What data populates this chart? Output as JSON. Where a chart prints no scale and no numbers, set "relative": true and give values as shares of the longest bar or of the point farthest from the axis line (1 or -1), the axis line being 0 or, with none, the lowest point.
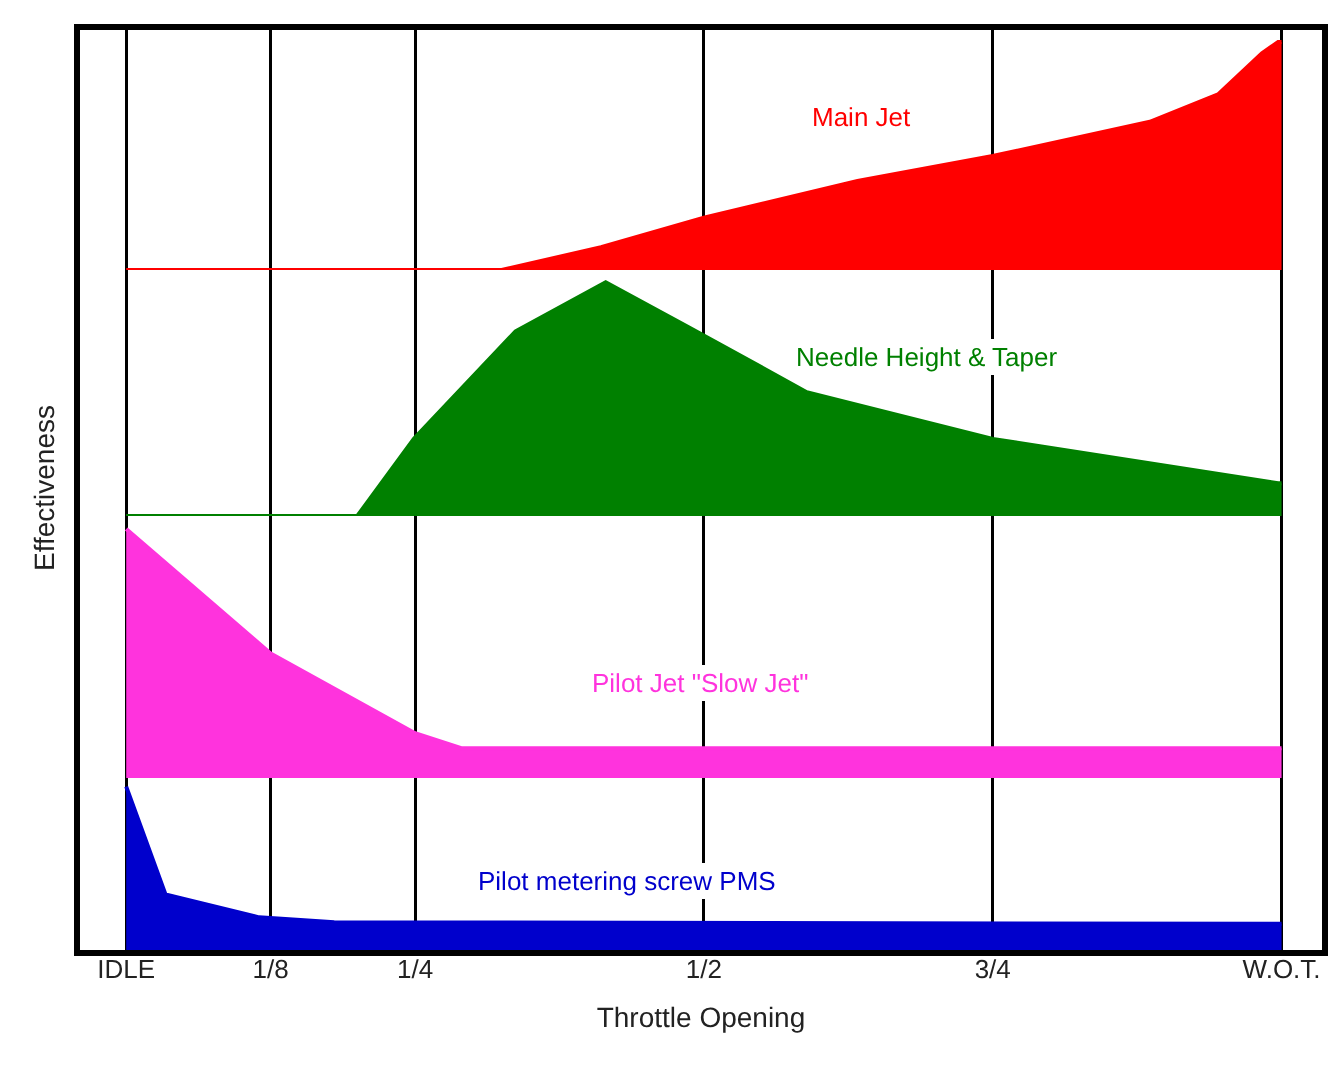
{
  "chart_data": [
    {
      "type": "area",
      "relative": true,
      "xlim": [
        -0.04,
        1.035
      ],
      "xticks": [
        {
          "value": 0,
          "label": null
        },
        {
          "value": 0.125,
          "label": null
        },
        {
          "value": 0.25,
          "label": null
        },
        {
          "value": 0.5,
          "label": null
        },
        {
          "value": 0.75,
          "label": null
        },
        {
          "value": 1,
          "label": null
        }
      ],
      "grid": "x",
      "tick_labels": false,
      "series": [
        {
          "name": "Main Jet",
          "color": "#ff0000",
          "x": [
            0,
            0.325,
            0.411,
            0.5,
            0.633,
            0.75,
            0.886,
            0.945,
            0.983,
            0.997,
            1
          ],
          "values": [
            0,
            0,
            0.1,
            0.23,
            0.39,
            0.5,
            0.65,
            0.77,
            0.95,
            1,
            1
          ]
        }
      ]
    },
    {
      "type": "area",
      "relative": true,
      "xlim": [
        -0.04,
        1.035
      ],
      "xticks": [
        {
          "value": 0,
          "label": null
        },
        {
          "value": 0.125,
          "label": null
        },
        {
          "value": 0.25,
          "label": null
        },
        {
          "value": 0.5,
          "label": null
        },
        {
          "value": 0.75,
          "label": null
        },
        {
          "value": 1,
          "label": null
        }
      ],
      "grid": "x",
      "tick_labels": false,
      "series": [
        {
          "name": "Needle Height & Taper",
          "color": "#008000",
          "x": [
            0,
            0.2,
            0.249,
            0.337,
            0.415,
            0.486,
            0.589,
            0.75,
            0.997,
            1
          ],
          "values": [
            0,
            0,
            0.33,
            0.79,
            1,
            0.81,
            0.53,
            0.33,
            0.14,
            0.14
          ]
        }
      ]
    },
    {
      "type": "area",
      "relative": true,
      "xlim": [
        -0.04,
        1.035
      ],
      "xticks": [
        {
          "value": 0,
          "label": null
        },
        {
          "value": 0.125,
          "label": null
        },
        {
          "value": 0.25,
          "label": null
        },
        {
          "value": 0.5,
          "label": null
        },
        {
          "value": 0.75,
          "label": null
        },
        {
          "value": 1,
          "label": null
        }
      ],
      "grid": "x",
      "tick_labels": false,
      "series": [
        {
          "name": "Pilot Jet \"Slow Jet\"",
          "color": "#ff33dd",
          "x": [
            0,
            0.125,
            0.25,
            0.29,
            1
          ],
          "values": [
            1,
            0.5,
            0.18,
            0.12,
            0.12
          ]
        }
      ]
    },
    {
      "type": "area",
      "relative": true,
      "xlim": [
        -0.04,
        1.035
      ],
      "xticks": [
        {
          "value": 0,
          "label": "IDLE"
        },
        {
          "value": 0.125,
          "label": "1/8"
        },
        {
          "value": 0.25,
          "label": "1/4"
        },
        {
          "value": 0.5,
          "label": "1/2"
        },
        {
          "value": 0.75,
          "label": "3/4"
        },
        {
          "value": 1,
          "label": "W.O.T."
        }
      ],
      "grid": "x",
      "tick_labels": "x",
      "xlabel": "Throttle Opening",
      "ylabel": "Effectiveness",
      "series": [
        {
          "name": "Pilot metering screw PMS",
          "color": "#0000cc",
          "x": [
            0,
            0.034,
            0.115,
            0.18,
            1
          ],
          "values": [
            1,
            0.34,
            0.2,
            0.17,
            0.16
          ]
        }
      ]
    }
  ]
}
